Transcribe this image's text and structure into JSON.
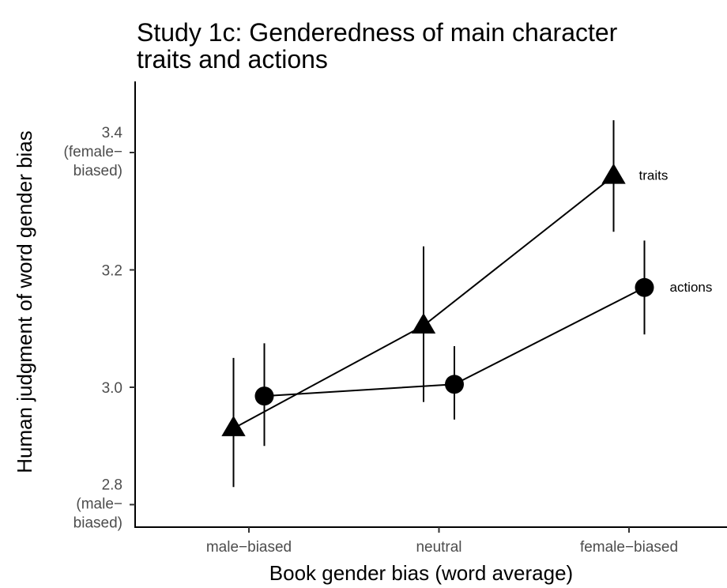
{
  "chart_data": {
    "type": "line",
    "title": [
      "Study 1c: Genderedness of main character",
      "traits and actions"
    ],
    "xlabel": "Book gender bias (word average)",
    "ylabel": "Human judgment of word gender bias",
    "categories": [
      "male−biased",
      "neutral",
      "female−biased"
    ],
    "y_ticks": [
      {
        "value": 2.8,
        "label": [
          "2.8",
          "(male−",
          "biased)"
        ]
      },
      {
        "value": 3.0,
        "label": [
          "3.0"
        ]
      },
      {
        "value": 3.2,
        "label": [
          "3.2"
        ]
      },
      {
        "value": 3.4,
        "label": [
          "3.4",
          "(female−",
          "biased)"
        ]
      }
    ],
    "ylim": [
      2.77,
      3.55
    ],
    "grid": false,
    "legend": "direct labels at right end of lines",
    "series": [
      {
        "name": "traits",
        "marker": "triangle",
        "x_offset": -0.1,
        "values": [
          2.93,
          3.105,
          3.36
        ],
        "lower": [
          2.83,
          2.975,
          3.265
        ],
        "upper": [
          3.05,
          3.24,
          3.455
        ]
      },
      {
        "name": "actions",
        "marker": "circle",
        "x_offset": 0.1,
        "values": [
          2.985,
          3.005,
          3.17
        ],
        "lower": [
          2.9,
          2.945,
          3.09
        ],
        "upper": [
          3.075,
          3.07,
          3.25
        ]
      }
    ]
  }
}
